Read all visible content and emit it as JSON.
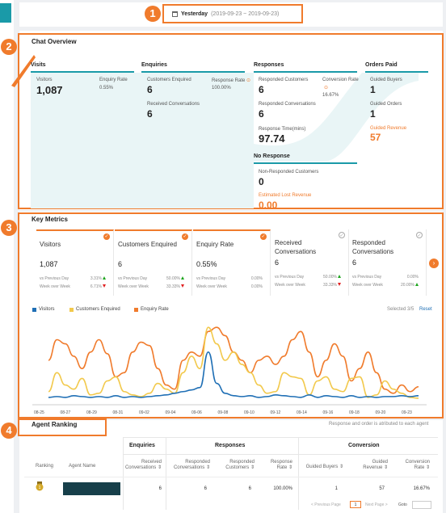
{
  "date": {
    "label": "Yesterday",
    "range": "(2019-09-23 ~ 2019-09-23)"
  },
  "annotations": [
    "1",
    "2",
    "3",
    "4"
  ],
  "chat_overview": {
    "title": "Chat Overview",
    "visits": {
      "header": "Visits",
      "visitors_label": "Visitors",
      "visitors": "1,087",
      "enquiry_rate_label": "Enquiry Rate",
      "enquiry_rate": "0.55%"
    },
    "enquiries": {
      "header": "Enquiries",
      "customers_enquired_label": "Customers Enquired",
      "customers_enquired": "6",
      "received_conv_label": "Received Conversations",
      "received_conv": "6",
      "response_rate_label": "Response Rate",
      "response_rate": "100.00%"
    },
    "responses": {
      "header": "Responses",
      "responded_customers_label": "Responded Customers",
      "responded_customers": "6",
      "responded_conv_label": "Responded Conversations",
      "responded_conv": "6",
      "response_time_label": "Response Time(mins)",
      "response_time": "97.74",
      "conversion_rate_label": "Conversion Rate",
      "conversion_rate": "16.67%"
    },
    "orders": {
      "header": "Orders Paid",
      "guided_buyers_label": "Guided Buyers",
      "guided_buyers": "1",
      "guided_orders_label": "Guided Orders",
      "guided_orders": "1",
      "guided_revenue_label": "Guided Revenue",
      "guided_revenue": "57"
    },
    "no_response": {
      "header": "No Response",
      "non_responded_label": "Non-Responded Customers",
      "non_responded": "0",
      "lost_revenue_label": "Estimated Lost Revenue",
      "lost_revenue": "0.00"
    }
  },
  "key_metrics": {
    "title": "Key Metrics",
    "cards": [
      {
        "name": "Visitors",
        "value": "1,087",
        "prev_label": "vs Previous Day",
        "prev": "3.31%",
        "prev_dir": "up",
        "week_label": "Week over Week",
        "week": "6.71%",
        "week_dir": "down",
        "selected": true
      },
      {
        "name": "Customers Enquired",
        "value": "6",
        "prev_label": "vs Previous Day",
        "prev": "50.00%",
        "prev_dir": "up",
        "week_label": "Week over Week",
        "week": "33.33%",
        "week_dir": "down",
        "selected": true
      },
      {
        "name": "Enquiry Rate",
        "value": "0.55%",
        "prev_label": "vs Previous Day",
        "prev": "0.00%",
        "prev_dir": "",
        "week_label": "Week over Week",
        "week": "0.00%",
        "week_dir": "",
        "selected": true
      },
      {
        "name": "Received Conversations",
        "value": "6",
        "prev_label": "vs Previous Day",
        "prev": "50.00%",
        "prev_dir": "up",
        "week_label": "Week over Week",
        "week": "33.33%",
        "week_dir": "down",
        "selected": false
      },
      {
        "name": "Responded Conversations",
        "value": "6",
        "prev_label": "vs Previous Day",
        "prev": "0.00%",
        "prev_dir": "",
        "week_label": "Week over Week",
        "week": "20.00%",
        "week_dir": "up",
        "selected": false
      }
    ],
    "legend": [
      {
        "name": "Visitors",
        "color": "#1f6fb5"
      },
      {
        "name": "Customers Enquired",
        "color": "#f2c94c"
      },
      {
        "name": "Enquiry Rate",
        "color": "#f07b2c"
      }
    ],
    "selected_label": "Selected",
    "selected_count": "3/5",
    "reset_label": "Reset"
  },
  "chart_data": {
    "type": "line",
    "x_ticks": [
      "08-25",
      "08-27",
      "08-29",
      "08-31",
      "09-02",
      "09-04",
      "09-06",
      "09-08",
      "09-10",
      "09-12",
      "09-14",
      "09-16",
      "09-18",
      "09-20",
      "09-23"
    ],
    "series": [
      {
        "name": "Visitors",
        "color": "#1f6fb5",
        "values": [
          0.05,
          0.06,
          0.05,
          0.07,
          0.06,
          0.05,
          0.06,
          0.05,
          0.07,
          0.05,
          0.06,
          0.05,
          0.06,
          0.07,
          0.08,
          0.1,
          0.12,
          0.14,
          0.17,
          0.6,
          0.22,
          0.1,
          0.07,
          0.06,
          0.07,
          0.05,
          0.06,
          0.08,
          0.07,
          0.06,
          0.05,
          0.08,
          0.05,
          0.07,
          0.06,
          0.05,
          0.07,
          0.05,
          0.06,
          0.05,
          0.06,
          0.06,
          0.07,
          0.06,
          0.07
        ]
      },
      {
        "name": "Customers Enquired",
        "color": "#f2c94c",
        "values": [
          0.12,
          0.35,
          0.2,
          0.15,
          0.28,
          0.08,
          0.1,
          0.25,
          0.3,
          0.12,
          0.08,
          0.06,
          0.1,
          0.22,
          0.15,
          0.1,
          0.35,
          0.55,
          0.4,
          0.9,
          0.7,
          0.5,
          0.6,
          0.45,
          0.35,
          0.2,
          0.1,
          0.12,
          0.35,
          0.3,
          0.28,
          0.08,
          0.25,
          0.3,
          0.15,
          0.12,
          0.28,
          0.3,
          0.05,
          0.08,
          0.25,
          0.15,
          0.1,
          0.05,
          0.04
        ]
      },
      {
        "name": "Enquiry Rate",
        "color": "#f07b2c",
        "values": [
          0.5,
          0.75,
          0.7,
          0.55,
          0.4,
          0.6,
          0.75,
          0.58,
          0.3,
          0.35,
          0.6,
          0.72,
          0.68,
          0.4,
          0.2,
          0.15,
          0.5,
          0.6,
          0.55,
          0.85,
          0.9,
          0.8,
          0.6,
          0.5,
          0.35,
          0.5,
          0.55,
          0.45,
          0.55,
          0.75,
          0.85,
          0.6,
          0.3,
          0.5,
          0.7,
          0.55,
          0.25,
          0.4,
          0.6,
          0.35,
          0.15,
          0.1,
          0.2,
          0.12,
          0.18
        ]
      }
    ],
    "ylim": [
      0,
      1
    ]
  },
  "agent_ranking": {
    "title": "Agent Ranking",
    "note": "Response and order is atributed to each agent",
    "groups": {
      "enquiries": "Enquiries",
      "responses": "Responses",
      "conversion": "Conversion"
    },
    "columns": {
      "ranking": "Ranking",
      "agent_name": "Agent Name",
      "received_conv": [
        "Received",
        "Conversations ⇕"
      ],
      "responded_conv": [
        "Responded",
        "Conversations ⇕"
      ],
      "responded_cust": [
        "Responded",
        "Customers ⇕"
      ],
      "response_rate": [
        "Response",
        "Rate ⇕"
      ],
      "guided_buyers": "Guided Buyers ⇕",
      "guided_revenue": [
        "Guided",
        "Revenue ⇕"
      ],
      "conversion_rate": [
        "Conversion",
        "Rate ⇕"
      ]
    },
    "rows": [
      {
        "received_conv": "6",
        "responded_conv": "6",
        "responded_cust": "6",
        "response_rate": "100.00%",
        "guided_buyers": "1",
        "guided_revenue": "57",
        "conversion_rate": "16.67%"
      }
    ],
    "pagination": {
      "prev": "< Previous Page",
      "page": "1",
      "next": "Next Page >",
      "goto": "Goto"
    }
  }
}
